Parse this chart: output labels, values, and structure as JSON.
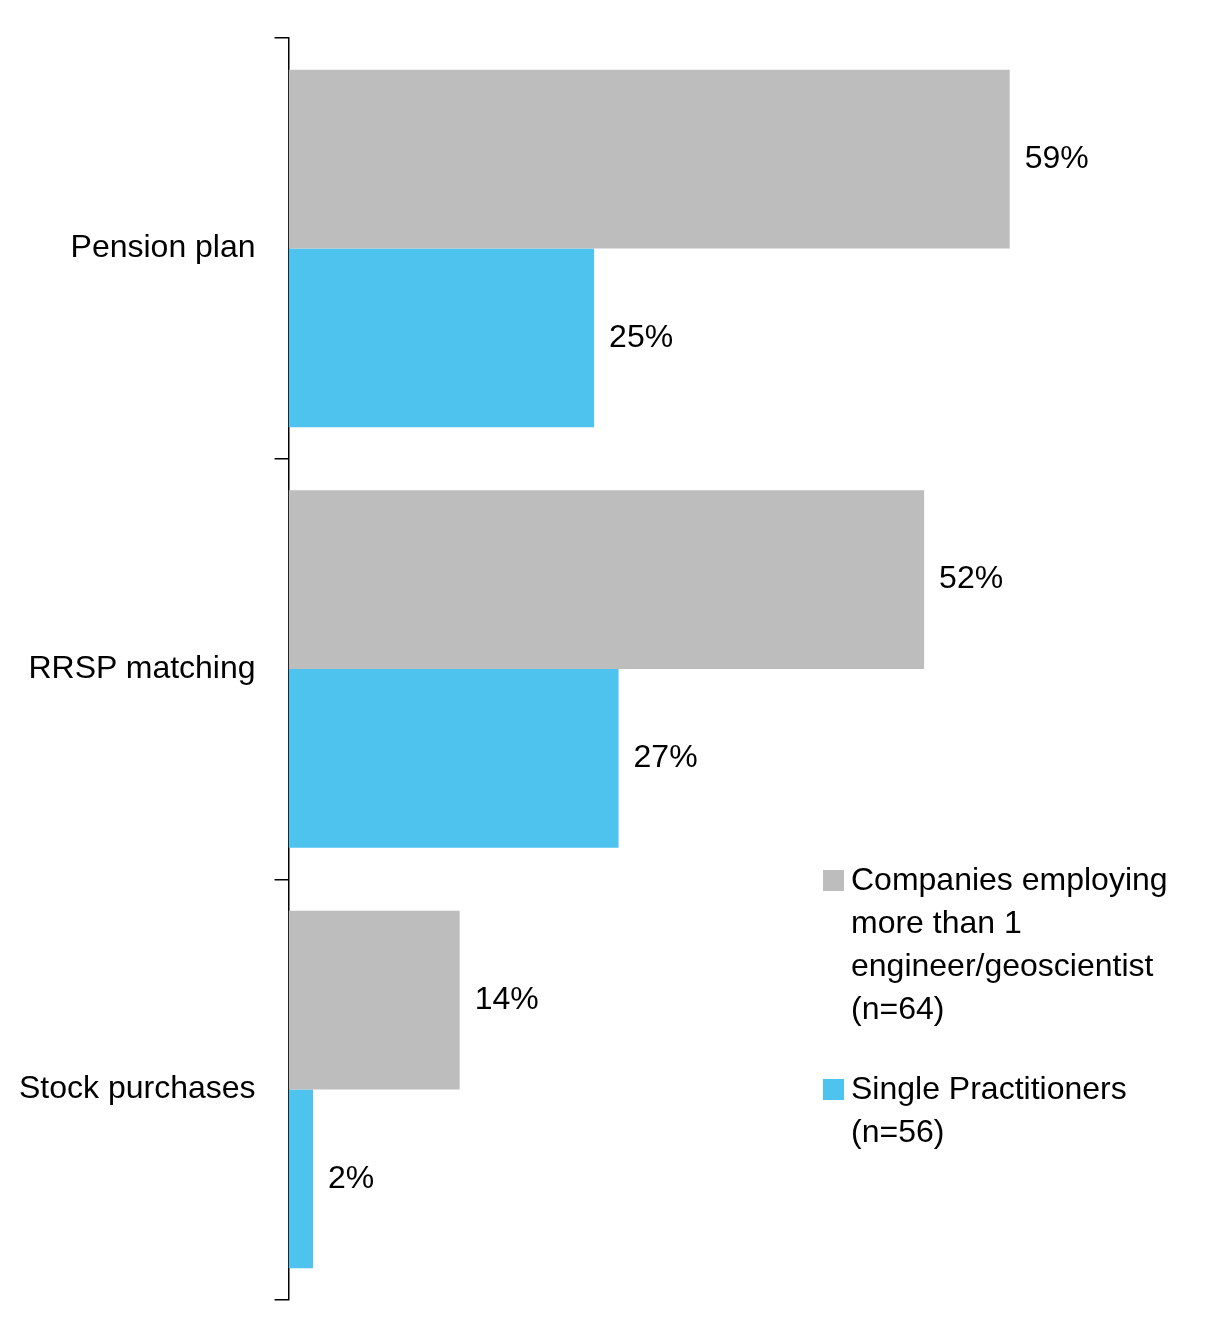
{
  "chart_data": {
    "type": "bar",
    "orientation": "horizontal",
    "categories": [
      "Pension plan",
      "RRSP matching",
      "Stock purchases"
    ],
    "series": [
      {
        "name": "Companies employing more than 1 engineer/geoscientist (n=64)",
        "color": "#bdbdbd",
        "values": [
          59,
          52,
          14
        ],
        "value_labels": [
          "59%",
          "52%",
          "14%"
        ]
      },
      {
        "name": "Single Practitioners (n=56)",
        "color": "#4dc3ee",
        "values": [
          25,
          27,
          2
        ],
        "value_labels": [
          "25%",
          "27%",
          "2%"
        ]
      }
    ],
    "legend": "bottom right",
    "tick_labels": "y"
  }
}
